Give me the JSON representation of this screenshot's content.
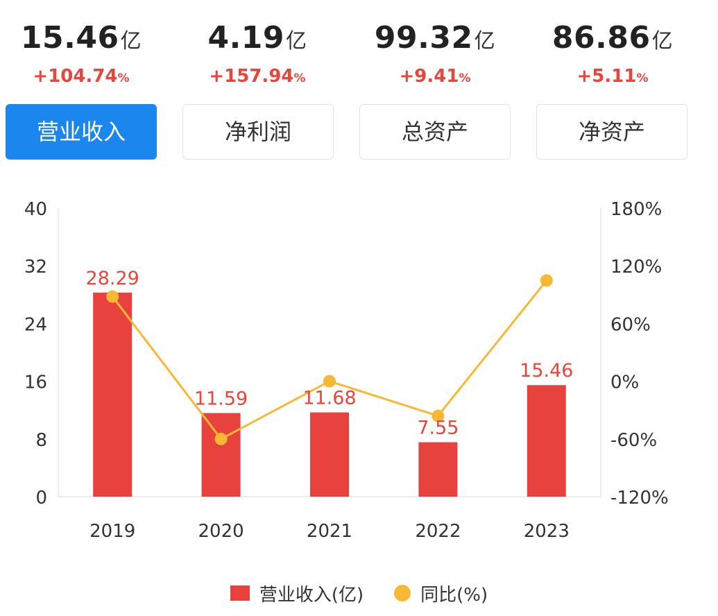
{
  "metrics": [
    {
      "value": "15.46",
      "unit": "亿",
      "change": "+104.74",
      "pct": "%"
    },
    {
      "value": "4.19",
      "unit": "亿",
      "change": "+157.94",
      "pct": "%"
    },
    {
      "value": "99.32",
      "unit": "亿",
      "change": "+9.41",
      "pct": "%"
    },
    {
      "value": "86.86",
      "unit": "亿",
      "change": "+5.11",
      "pct": "%"
    }
  ],
  "tabs": [
    {
      "label": "营业收入",
      "active": true
    },
    {
      "label": "净利润",
      "active": false
    },
    {
      "label": "总资产",
      "active": false
    },
    {
      "label": "净资产",
      "active": false
    }
  ],
  "colors": {
    "bar": "#e8423f",
    "line": "#f8b833",
    "active_tab": "#1b86ee",
    "change_text": "#e8453c"
  },
  "chart_data": {
    "type": "bar",
    "categories": [
      "2019",
      "2020",
      "2021",
      "2022",
      "2023"
    ],
    "series": [
      {
        "name": "营业收入(亿)",
        "type": "bar",
        "axis": "left",
        "values": [
          28.29,
          11.59,
          11.68,
          7.55,
          15.46
        ]
      },
      {
        "name": "同比(%)",
        "type": "line",
        "axis": "right",
        "values": [
          88,
          -60,
          0,
          -36,
          104.74
        ]
      }
    ],
    "y_left": {
      "min": 0,
      "max": 40,
      "ticks": [
        "0",
        "8",
        "16",
        "24",
        "32",
        "40"
      ]
    },
    "y_right": {
      "min": -120,
      "max": 180,
      "ticks": [
        "-120%",
        "-60%",
        "0%",
        "60%",
        "120%",
        "180%"
      ]
    },
    "bar_labels": [
      "28.29",
      "11.59",
      "11.68",
      "7.55",
      "15.46"
    ],
    "legend": {
      "position": "bottom",
      "items": [
        "营业收入(亿)",
        "同比(%)"
      ]
    },
    "grid": false
  }
}
